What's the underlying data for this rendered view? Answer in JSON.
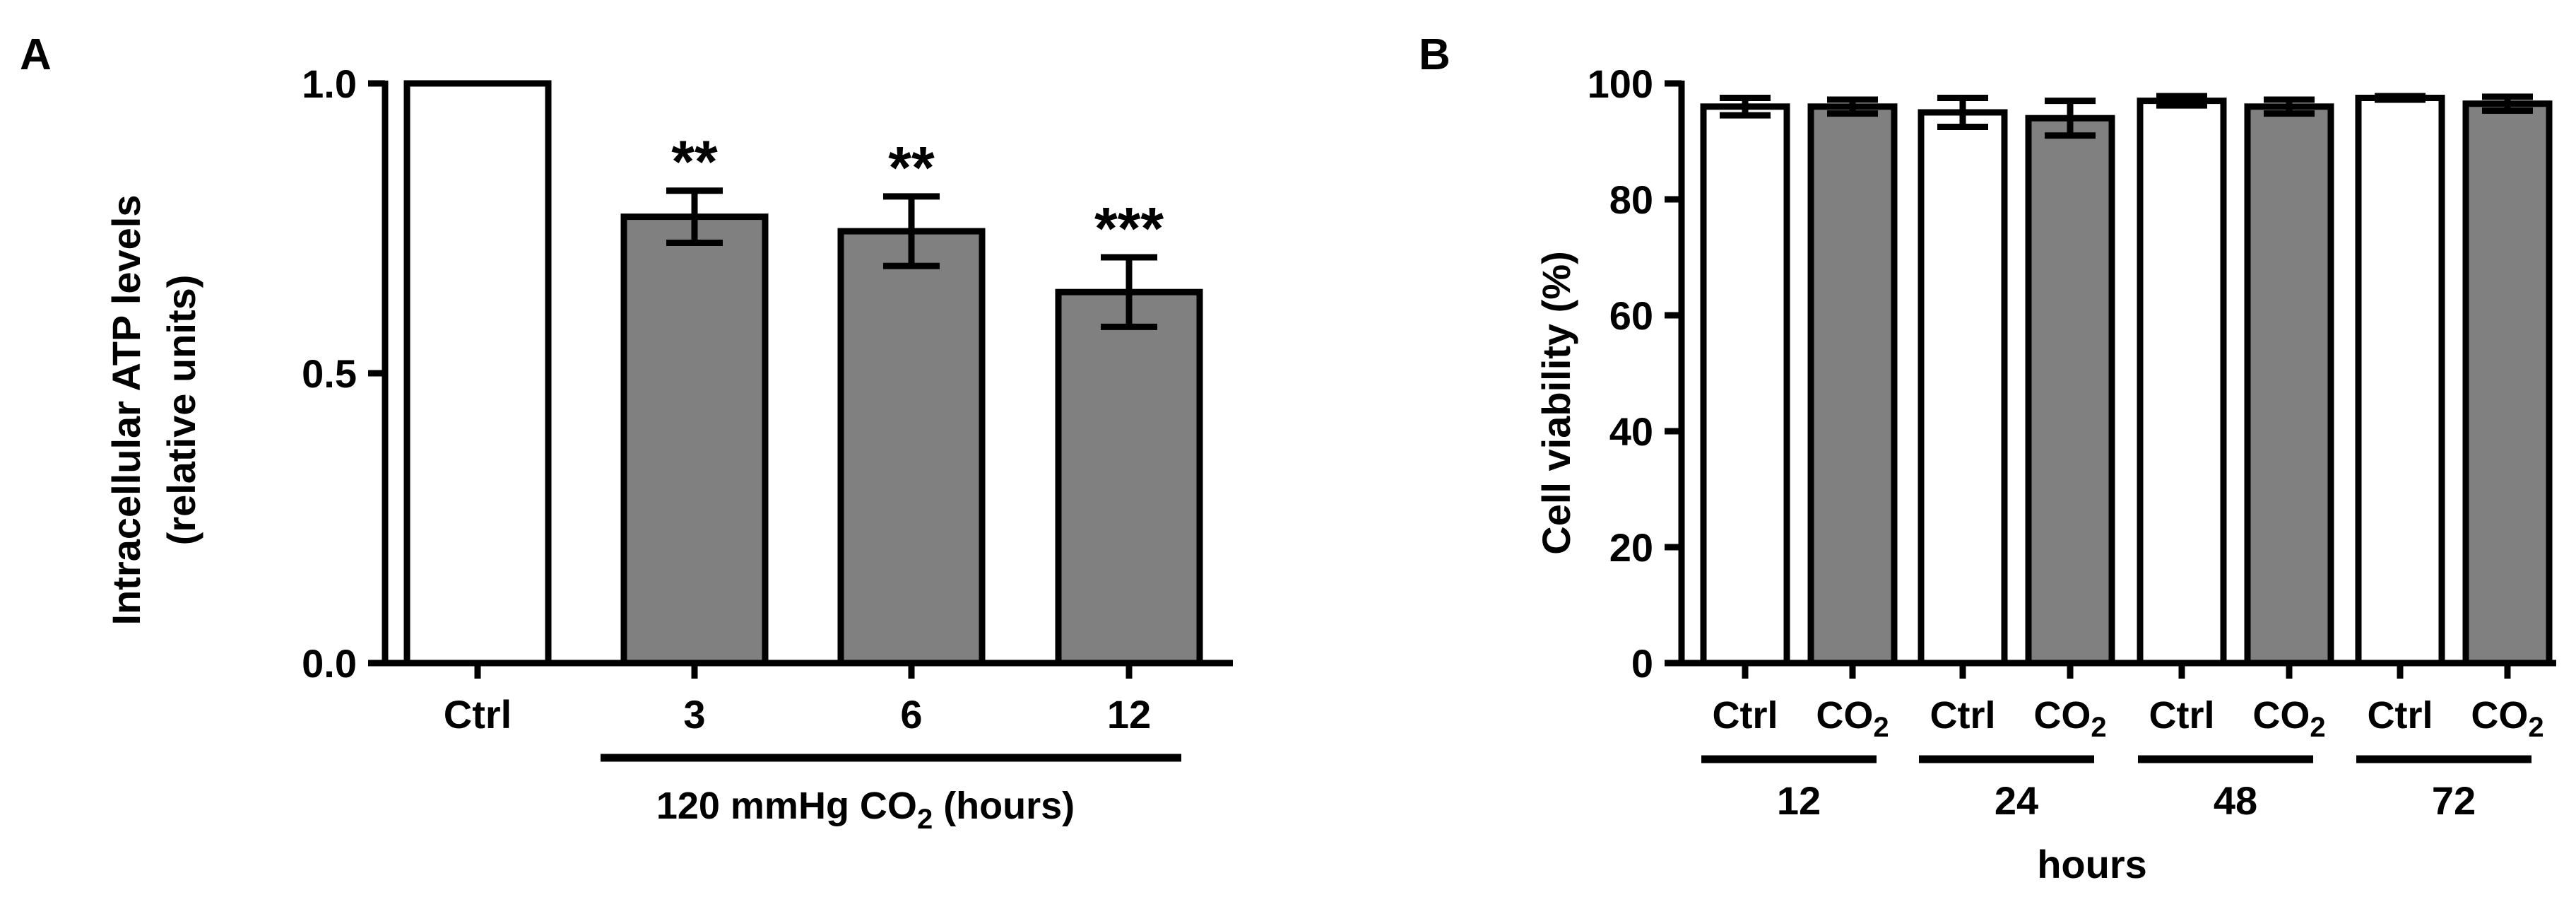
{
  "colors": {
    "ctrl_fill": "#ffffff",
    "treated_fill": "#808080",
    "stroke": "#000000"
  },
  "chart_data": [
    {
      "panel_label": "A",
      "type": "bar",
      "ylabel_line1": "Intracellular ATP levels",
      "ylabel_line2": "(relative units)",
      "ylim": [
        0,
        1.0
      ],
      "yticks": [
        "0.0",
        "0.5",
        "1.0"
      ],
      "ytick_values": [
        0.0,
        0.5,
        1.0
      ],
      "categories": [
        "Ctrl",
        "3",
        "6",
        "12"
      ],
      "values": [
        1.0,
        0.77,
        0.745,
        0.64
      ],
      "errors": [
        0.0,
        0.045,
        0.06,
        0.06
      ],
      "fills": [
        "ctrl",
        "treated",
        "treated",
        "treated"
      ],
      "significance": [
        "",
        "**",
        "**",
        "***"
      ],
      "group_label_main": "120 mmHg CO",
      "group_label_sub": "2",
      "group_label_suffix": " (hours)"
    },
    {
      "panel_label": "B",
      "type": "bar",
      "ylabel": "Cell viability (%)",
      "ylim": [
        0,
        100
      ],
      "yticks": [
        "0",
        "20",
        "40",
        "60",
        "80",
        "100"
      ],
      "ytick_values": [
        0,
        20,
        40,
        60,
        80,
        100
      ],
      "ctrl_label": "Ctrl",
      "co2_label_main": "CO",
      "co2_label_sub": "2",
      "groups": [
        "12",
        "24",
        "48",
        "72"
      ],
      "series": [
        {
          "name": "Ctrl",
          "values": [
            96,
            95,
            97,
            97.5
          ],
          "errors": [
            1.5,
            2.5,
            0.8,
            0.3
          ]
        },
        {
          "name": "CO2",
          "values": [
            96,
            94,
            96,
            96.5
          ],
          "errors": [
            1.2,
            3.0,
            1.2,
            1.2
          ]
        }
      ],
      "xlabel": "hours"
    }
  ]
}
